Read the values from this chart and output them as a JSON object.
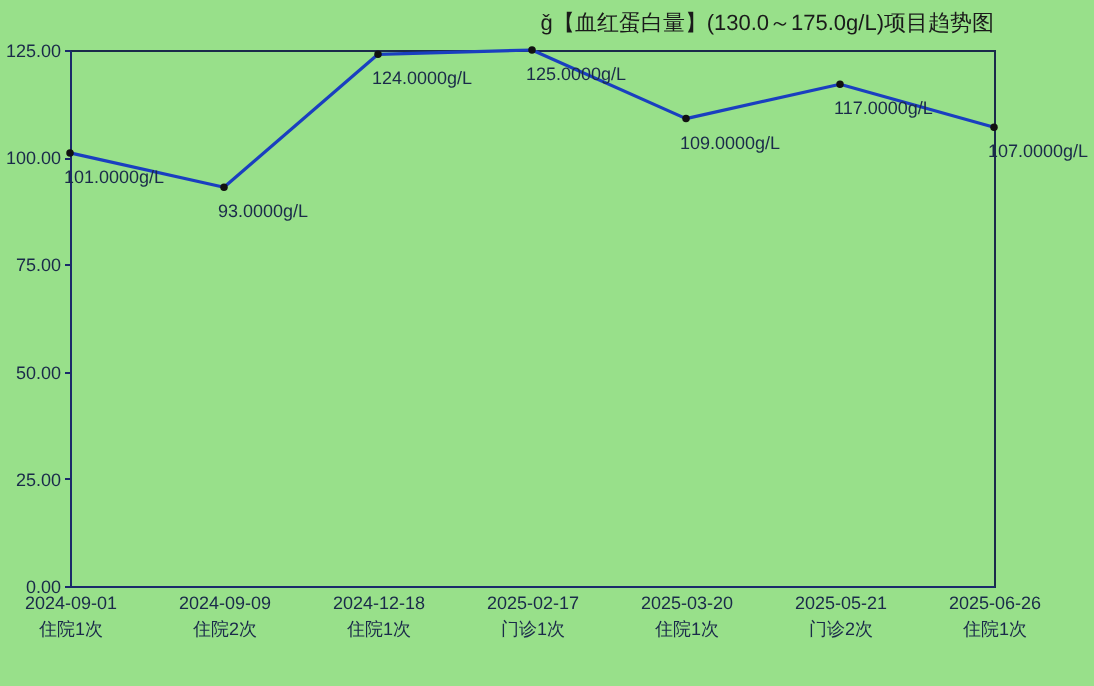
{
  "chart_data": {
    "type": "line",
    "title": "ǧ【血红蛋白量】(130.0～175.0g/L)项目趋势图",
    "categories": [
      "2024-09-01\n住院1次",
      "2024-09-09\n住院2次",
      "2024-12-18\n住院1次",
      "2025-02-17\n门诊1次",
      "2025-03-20\n住院1次",
      "2025-05-21\n门诊2次",
      "2025-06-26\n住院1次"
    ],
    "series": [
      {
        "color": "#1a3fc0",
        "values": [
          101,
          93,
          124,
          125,
          109,
          117,
          107
        ],
        "value_labels": [
          "101.0000g/L",
          "93.0000g/L",
          "124.0000g/L",
          "125.0000g/L",
          "109.0000g/L",
          "117.0000g/L",
          "107.0000g/L"
        ]
      }
    ],
    "ylim": [
      0,
      125
    ],
    "yticks": [
      {
        "value": 0,
        "label": "0.00"
      },
      {
        "value": 25,
        "label": "25.00"
      },
      {
        "value": 50,
        "label": "50.00"
      },
      {
        "value": 75,
        "label": "75.00"
      },
      {
        "value": 100,
        "label": "100.00"
      },
      {
        "value": 125,
        "label": "125.00"
      }
    ],
    "marker": "circle",
    "grid": false
  }
}
